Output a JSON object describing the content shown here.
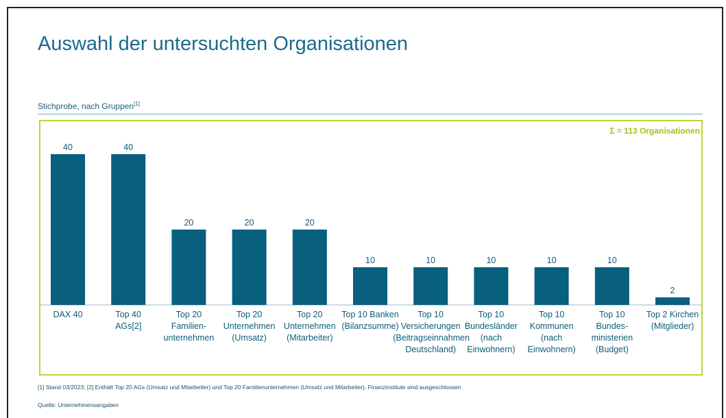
{
  "chart_data": {
    "type": "bar",
    "title": "Auswahl der untersuchten Organisationen",
    "subtitle": "Stichprobe, nach Gruppen",
    "subtitle_ref": "[1]",
    "annotation": "Σ = 113 Organisationen",
    "categories": [
      "DAX 40",
      "Top 40\nAGs[2]",
      "Top 20\nFamilien-\nunternehmen",
      "Top 20\nUnternehmen\n(Umsatz)",
      "Top 20\nUnternehmen\n(Mitarbeiter)",
      "Top 10 Banken\n(Bilanzsumme)",
      "Top 10\nVersicherungen\n(Beitragseinnahmen\nDeutschland)",
      "Top 10\nBundesländer\n(nach\nEinwohnern)",
      "Top 10\nKommunen\n(nach\nEinwohnern)",
      "Top 10\nBundes-\nministerien\n(Budget)",
      "Top 2 Kirchen\n(Mitglieder)"
    ],
    "values": [
      40,
      40,
      20,
      20,
      20,
      10,
      10,
      10,
      10,
      10,
      2
    ],
    "color": "#085f7e",
    "footnote": "[1] Stand 03/2023; [2] Enthält Top 20 AGs (Umsatz und Mitarbeiter) und Top 20 Familienunternehmen (Umsatz und Mitarbeiter), Finanzinstitute sind ausgeschlossen",
    "source": "Quelle: Unternehmensangaben"
  }
}
